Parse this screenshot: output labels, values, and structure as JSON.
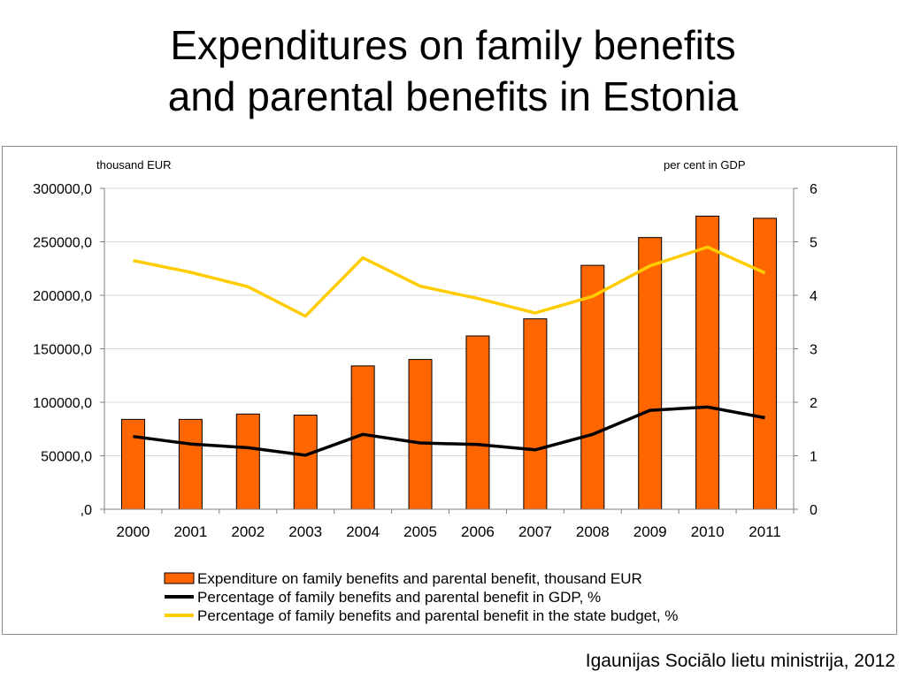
{
  "slide": {
    "title_line1": "Expenditures on family benefits",
    "title_line2": "and parental benefits in Estonia",
    "source": "Igaunijas Sociālo lietu ministrija, 2012"
  },
  "chart_data": {
    "type": "bar",
    "categories": [
      "2000",
      "2001",
      "2002",
      "2003",
      "2004",
      "2005",
      "2006",
      "2007",
      "2008",
      "2009",
      "2010",
      "2011"
    ],
    "y_left": {
      "unit_label": "thousand EUR",
      "ylim": [
        0,
        300000
      ],
      "tick_values": [
        0,
        50000,
        100000,
        150000,
        200000,
        250000,
        300000
      ],
      "tick_labels": [
        ",0",
        "50000,0",
        "100000,0",
        "150000,0",
        "200000,0",
        "250000,0",
        "300000,0"
      ]
    },
    "y_right": {
      "unit_label": "per cent in GDP",
      "ylim": [
        0,
        6
      ],
      "tick_values": [
        0,
        1,
        2,
        3,
        4,
        5,
        6
      ],
      "tick_labels": [
        "0",
        "1",
        "2",
        "3",
        "4",
        "5",
        "6"
      ]
    },
    "grid": true,
    "legend_position": "bottom",
    "series": [
      {
        "name": "Expenditure on family benefits and parental benefit, thousand EUR",
        "kind": "bar",
        "axis": "left",
        "color": "#ff6600",
        "values": [
          84000,
          84000,
          89000,
          88000,
          134000,
          140000,
          162000,
          178000,
          228000,
          254000,
          274000,
          272000
        ]
      },
      {
        "name": "Percentage of family benefits and parental benefit in GDP, %",
        "kind": "line",
        "axis": "right",
        "color": "#000000",
        "values": [
          1.36,
          1.22,
          1.15,
          1.01,
          1.4,
          1.24,
          1.21,
          1.11,
          1.4,
          1.85,
          1.91,
          1.71
        ]
      },
      {
        "name": "Percentage of family benefits and parental benefit in the state budget, %",
        "kind": "line",
        "axis": "right",
        "color": "#ffcc00",
        "values": [
          4.65,
          4.43,
          4.16,
          3.61,
          4.7,
          4.17,
          3.94,
          3.67,
          3.98,
          4.55,
          4.9,
          4.42
        ]
      }
    ]
  }
}
